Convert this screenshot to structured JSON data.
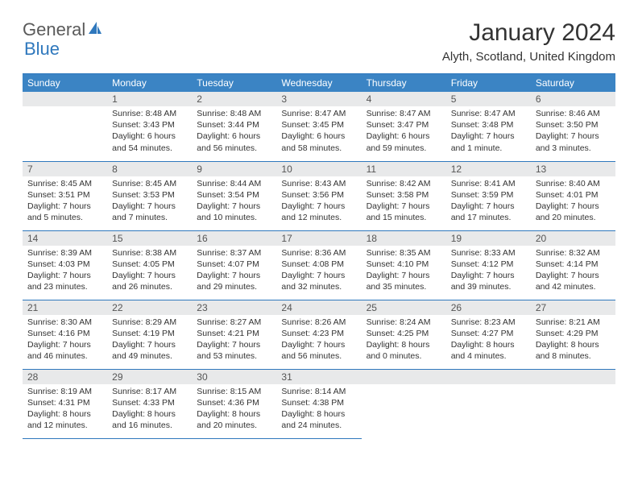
{
  "logo": {
    "text1": "General",
    "text2": "Blue"
  },
  "title": "January 2024",
  "subtitle": "Alyth, Scotland, United Kingdom",
  "colors": {
    "header_bg": "#3b84c4",
    "header_border": "#2f78bd",
    "daynum_bg": "#e8e9ea",
    "text": "#333333",
    "logo_gray": "#5a5a5a",
    "logo_blue": "#2f78bd"
  },
  "weekdays": [
    "Sunday",
    "Monday",
    "Tuesday",
    "Wednesday",
    "Thursday",
    "Friday",
    "Saturday"
  ],
  "weeks": [
    [
      {
        "n": "",
        "sr": "",
        "ss": "",
        "dl": ""
      },
      {
        "n": "1",
        "sr": "Sunrise: 8:48 AM",
        "ss": "Sunset: 3:43 PM",
        "dl": "Daylight: 6 hours and 54 minutes."
      },
      {
        "n": "2",
        "sr": "Sunrise: 8:48 AM",
        "ss": "Sunset: 3:44 PM",
        "dl": "Daylight: 6 hours and 56 minutes."
      },
      {
        "n": "3",
        "sr": "Sunrise: 8:47 AM",
        "ss": "Sunset: 3:45 PM",
        "dl": "Daylight: 6 hours and 58 minutes."
      },
      {
        "n": "4",
        "sr": "Sunrise: 8:47 AM",
        "ss": "Sunset: 3:47 PM",
        "dl": "Daylight: 6 hours and 59 minutes."
      },
      {
        "n": "5",
        "sr": "Sunrise: 8:47 AM",
        "ss": "Sunset: 3:48 PM",
        "dl": "Daylight: 7 hours and 1 minute."
      },
      {
        "n": "6",
        "sr": "Sunrise: 8:46 AM",
        "ss": "Sunset: 3:50 PM",
        "dl": "Daylight: 7 hours and 3 minutes."
      }
    ],
    [
      {
        "n": "7",
        "sr": "Sunrise: 8:45 AM",
        "ss": "Sunset: 3:51 PM",
        "dl": "Daylight: 7 hours and 5 minutes."
      },
      {
        "n": "8",
        "sr": "Sunrise: 8:45 AM",
        "ss": "Sunset: 3:53 PM",
        "dl": "Daylight: 7 hours and 7 minutes."
      },
      {
        "n": "9",
        "sr": "Sunrise: 8:44 AM",
        "ss": "Sunset: 3:54 PM",
        "dl": "Daylight: 7 hours and 10 minutes."
      },
      {
        "n": "10",
        "sr": "Sunrise: 8:43 AM",
        "ss": "Sunset: 3:56 PM",
        "dl": "Daylight: 7 hours and 12 minutes."
      },
      {
        "n": "11",
        "sr": "Sunrise: 8:42 AM",
        "ss": "Sunset: 3:58 PM",
        "dl": "Daylight: 7 hours and 15 minutes."
      },
      {
        "n": "12",
        "sr": "Sunrise: 8:41 AM",
        "ss": "Sunset: 3:59 PM",
        "dl": "Daylight: 7 hours and 17 minutes."
      },
      {
        "n": "13",
        "sr": "Sunrise: 8:40 AM",
        "ss": "Sunset: 4:01 PM",
        "dl": "Daylight: 7 hours and 20 minutes."
      }
    ],
    [
      {
        "n": "14",
        "sr": "Sunrise: 8:39 AM",
        "ss": "Sunset: 4:03 PM",
        "dl": "Daylight: 7 hours and 23 minutes."
      },
      {
        "n": "15",
        "sr": "Sunrise: 8:38 AM",
        "ss": "Sunset: 4:05 PM",
        "dl": "Daylight: 7 hours and 26 minutes."
      },
      {
        "n": "16",
        "sr": "Sunrise: 8:37 AM",
        "ss": "Sunset: 4:07 PM",
        "dl": "Daylight: 7 hours and 29 minutes."
      },
      {
        "n": "17",
        "sr": "Sunrise: 8:36 AM",
        "ss": "Sunset: 4:08 PM",
        "dl": "Daylight: 7 hours and 32 minutes."
      },
      {
        "n": "18",
        "sr": "Sunrise: 8:35 AM",
        "ss": "Sunset: 4:10 PM",
        "dl": "Daylight: 7 hours and 35 minutes."
      },
      {
        "n": "19",
        "sr": "Sunrise: 8:33 AM",
        "ss": "Sunset: 4:12 PM",
        "dl": "Daylight: 7 hours and 39 minutes."
      },
      {
        "n": "20",
        "sr": "Sunrise: 8:32 AM",
        "ss": "Sunset: 4:14 PM",
        "dl": "Daylight: 7 hours and 42 minutes."
      }
    ],
    [
      {
        "n": "21",
        "sr": "Sunrise: 8:30 AM",
        "ss": "Sunset: 4:16 PM",
        "dl": "Daylight: 7 hours and 46 minutes."
      },
      {
        "n": "22",
        "sr": "Sunrise: 8:29 AM",
        "ss": "Sunset: 4:19 PM",
        "dl": "Daylight: 7 hours and 49 minutes."
      },
      {
        "n": "23",
        "sr": "Sunrise: 8:27 AM",
        "ss": "Sunset: 4:21 PM",
        "dl": "Daylight: 7 hours and 53 minutes."
      },
      {
        "n": "24",
        "sr": "Sunrise: 8:26 AM",
        "ss": "Sunset: 4:23 PM",
        "dl": "Daylight: 7 hours and 56 minutes."
      },
      {
        "n": "25",
        "sr": "Sunrise: 8:24 AM",
        "ss": "Sunset: 4:25 PM",
        "dl": "Daylight: 8 hours and 0 minutes."
      },
      {
        "n": "26",
        "sr": "Sunrise: 8:23 AM",
        "ss": "Sunset: 4:27 PM",
        "dl": "Daylight: 8 hours and 4 minutes."
      },
      {
        "n": "27",
        "sr": "Sunrise: 8:21 AM",
        "ss": "Sunset: 4:29 PM",
        "dl": "Daylight: 8 hours and 8 minutes."
      }
    ],
    [
      {
        "n": "28",
        "sr": "Sunrise: 8:19 AM",
        "ss": "Sunset: 4:31 PM",
        "dl": "Daylight: 8 hours and 12 minutes."
      },
      {
        "n": "29",
        "sr": "Sunrise: 8:17 AM",
        "ss": "Sunset: 4:33 PM",
        "dl": "Daylight: 8 hours and 16 minutes."
      },
      {
        "n": "30",
        "sr": "Sunrise: 8:15 AM",
        "ss": "Sunset: 4:36 PM",
        "dl": "Daylight: 8 hours and 20 minutes."
      },
      {
        "n": "31",
        "sr": "Sunrise: 8:14 AM",
        "ss": "Sunset: 4:38 PM",
        "dl": "Daylight: 8 hours and 24 minutes."
      },
      {
        "n": "",
        "sr": "",
        "ss": "",
        "dl": ""
      },
      {
        "n": "",
        "sr": "",
        "ss": "",
        "dl": ""
      },
      {
        "n": "",
        "sr": "",
        "ss": "",
        "dl": ""
      }
    ]
  ]
}
